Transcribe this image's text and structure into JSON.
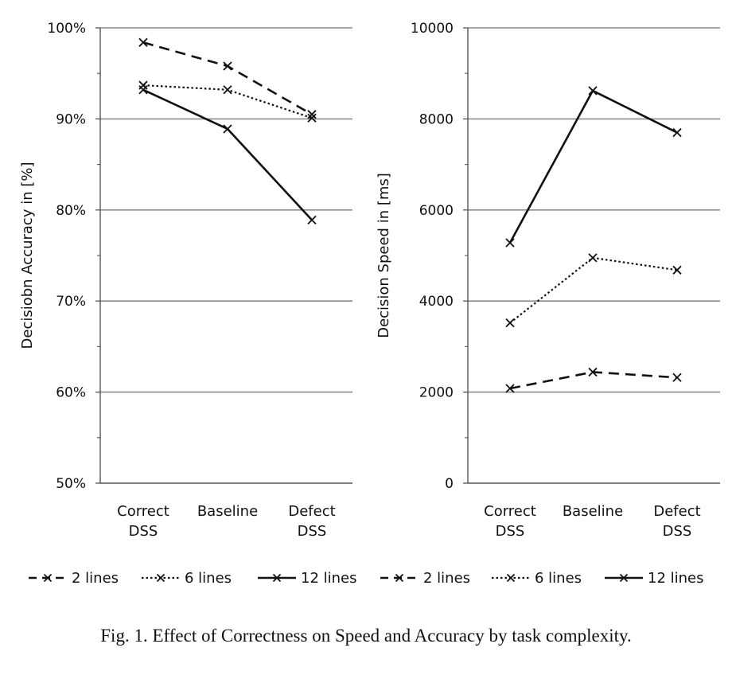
{
  "caption": "Fig. 1.  Effect of Correctness on Speed and Accuracy by task complexity.",
  "chart_data": [
    {
      "type": "line",
      "ylabel": "Decisiobn Accuracy in [%]",
      "ylim": [
        50,
        100
      ],
      "y_ticks": [
        "50%",
        "60%",
        "70%",
        "80%",
        "90%",
        "100%"
      ],
      "y_tick_values": [
        50,
        60,
        70,
        80,
        90,
        100
      ],
      "categories": [
        [
          "Correct",
          "DSS"
        ],
        [
          "Baseline"
        ],
        [
          "Defect",
          "DSS"
        ]
      ],
      "grid": true,
      "legend_position": "bottom",
      "series": [
        {
          "name": "2 lines",
          "style": "dashed",
          "values": [
            98.4,
            95.8,
            90.5
          ]
        },
        {
          "name": "6 lines",
          "style": "dotted",
          "values": [
            93.7,
            93.2,
            90.1
          ]
        },
        {
          "name": "12 lines",
          "style": "solid",
          "values": [
            93.2,
            88.9,
            78.9
          ]
        }
      ]
    },
    {
      "type": "line",
      "ylabel": "Decision Speed in [ms]",
      "ylim": [
        0,
        10000
      ],
      "y_ticks": [
        "0",
        "2000",
        "4000",
        "6000",
        "8000",
        "10000"
      ],
      "y_tick_values": [
        0,
        2000,
        4000,
        6000,
        8000,
        10000
      ],
      "categories": [
        [
          "Correct",
          "DSS"
        ],
        [
          "Baseline"
        ],
        [
          "Defect",
          "DSS"
        ]
      ],
      "grid": true,
      "legend_position": "bottom",
      "series": [
        {
          "name": "2 lines",
          "style": "dashed",
          "values": [
            2080,
            2440,
            2320
          ]
        },
        {
          "name": "6 lines",
          "style": "dotted",
          "values": [
            3520,
            4950,
            4680
          ]
        },
        {
          "name": "12 lines",
          "style": "solid",
          "values": [
            5280,
            8620,
            7700
          ]
        }
      ]
    }
  ]
}
